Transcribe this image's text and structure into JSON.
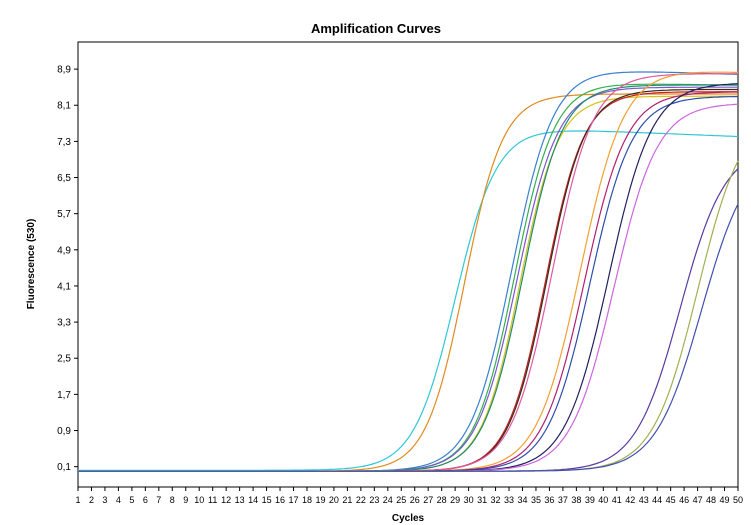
{
  "chart_data": {
    "type": "line",
    "title": "Amplification Curves",
    "xlabel": "Cycles",
    "ylabel": "Fluorescence (530)",
    "xlim": [
      1,
      50
    ],
    "ylim": [
      -0.35,
      9.5
    ],
    "x_ticks": [
      "1",
      "2",
      "3",
      "4",
      "5",
      "6",
      "7",
      "8",
      "9",
      "10",
      "11",
      "12",
      "13",
      "14",
      "15",
      "16",
      "17",
      "18",
      "19",
      "20",
      "21",
      "22",
      "23",
      "24",
      "25",
      "26",
      "27",
      "28",
      "29",
      "30",
      "31",
      "32",
      "33",
      "34",
      "35",
      "36",
      "37",
      "38",
      "39",
      "40",
      "41",
      "42",
      "43",
      "44",
      "45",
      "46",
      "47",
      "48",
      "49",
      "50"
    ],
    "y_ticks": [
      {
        "value": 0.1,
        "label": "0,1"
      },
      {
        "value": 0.9,
        "label": "0,9"
      },
      {
        "value": 1.7,
        "label": "1,7"
      },
      {
        "value": 2.5,
        "label": "2,5"
      },
      {
        "value": 3.3,
        "label": "3,3"
      },
      {
        "value": 4.1,
        "label": "4,1"
      },
      {
        "value": 4.9,
        "label": "4,9"
      },
      {
        "value": 5.7,
        "label": "5,7"
      },
      {
        "value": 6.5,
        "label": "6,5"
      },
      {
        "value": 7.3,
        "label": "7,3"
      },
      {
        "value": 8.1,
        "label": "8,1"
      },
      {
        "value": 8.9,
        "label": "8,9"
      }
    ],
    "grid": false,
    "legend": "none",
    "series": [
      {
        "color": "#2ec7d6",
        "base": 0.02,
        "plateau": 7.6,
        "mid": 29.0,
        "slope": 0.65,
        "drift": -0.12
      },
      {
        "color": "#e08a1e",
        "base": 0.0,
        "plateau": 8.35,
        "mid": 29.7,
        "slope": 0.7,
        "drift": 0.0
      },
      {
        "color": "#3a7fd0",
        "base": 0.0,
        "plateau": 8.9,
        "mid": 33.2,
        "slope": 0.65,
        "drift": -0.1
      },
      {
        "color": "#33b050",
        "base": 0.0,
        "plateau": 8.6,
        "mid": 33.4,
        "slope": 0.68,
        "drift": -0.05
      },
      {
        "color": "#7a58c8",
        "base": 0.0,
        "plateau": 8.5,
        "mid": 33.6,
        "slope": 0.66,
        "drift": 0.0
      },
      {
        "color": "#d5c21a",
        "base": 0.0,
        "plateau": 8.3,
        "mid": 33.8,
        "slope": 0.7,
        "drift": 0.0
      },
      {
        "color": "#1e8c70",
        "base": 0.0,
        "plateau": 8.55,
        "mid": 34.0,
        "slope": 0.68,
        "drift": 0.0
      },
      {
        "color": "#c82020",
        "base": 0.0,
        "plateau": 8.4,
        "mid": 35.7,
        "slope": 0.7,
        "drift": 0.0
      },
      {
        "color": "#3a2a18",
        "base": 0.0,
        "plateau": 8.45,
        "mid": 35.8,
        "slope": 0.7,
        "drift": 0.0
      },
      {
        "color": "#e05aa0",
        "base": 0.0,
        "plateau": 8.8,
        "mid": 36.2,
        "slope": 0.66,
        "drift": 0.0
      },
      {
        "color": "#f0a030",
        "base": 0.0,
        "plateau": 8.9,
        "mid": 38.3,
        "slope": 0.62,
        "drift": -0.1
      },
      {
        "color": "#b02070",
        "base": 0.0,
        "plateau": 8.4,
        "mid": 38.6,
        "slope": 0.64,
        "drift": 0.0
      },
      {
        "color": "#2b4fa8",
        "base": 0.0,
        "plateau": 8.3,
        "mid": 39.0,
        "slope": 0.64,
        "drift": 0.0
      },
      {
        "color": "#202060",
        "base": 0.0,
        "plateau": 8.6,
        "mid": 40.4,
        "slope": 0.62,
        "drift": 0.0
      },
      {
        "color": "#cc66dd",
        "base": 0.0,
        "plateau": 8.15,
        "mid": 40.8,
        "slope": 0.62,
        "drift": 0.0
      },
      {
        "color": "#5a3aa0",
        "base": 0.0,
        "plateau": 7.2,
        "mid": 45.7,
        "slope": 0.6,
        "drift": 0.0
      },
      {
        "color": "#a0b050",
        "base": 0.0,
        "plateau": 8.0,
        "mid": 47.0,
        "slope": 0.6,
        "drift": 0.0
      },
      {
        "color": "#4050b0",
        "base": 0.0,
        "plateau": 7.15,
        "mid": 47.3,
        "slope": 0.58,
        "drift": 0.0
      }
    ]
  }
}
